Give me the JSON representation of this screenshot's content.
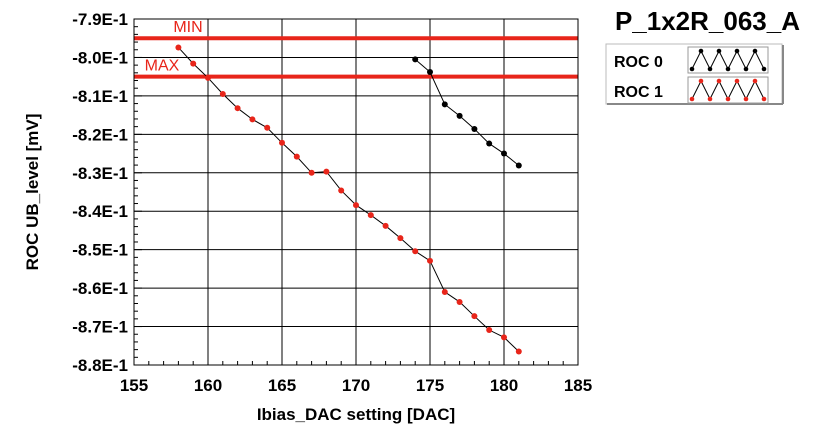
{
  "chart_data": {
    "type": "line",
    "title": "P_1x2R_063_A",
    "xlabel": "Ibias_DAC setting [DAC]",
    "ylabel": "ROC UB_level [mV]",
    "xlim": [
      155,
      185
    ],
    "ylim": [
      -0.88,
      -0.79
    ],
    "x_ticks": [
      "155",
      "160",
      "165",
      "170",
      "175",
      "180",
      "185"
    ],
    "y_ticks": [
      "-7.9E-1",
      "-8.0E-1",
      "-8.1E-1",
      "-8.2E-1",
      "-8.3E-1",
      "-8.4E-1",
      "-8.5E-1",
      "-8.6E-1",
      "-8.7E-1",
      "-8.8E-1"
    ],
    "grid": true,
    "legend_position": "top-right",
    "series": [
      {
        "name": "ROC 0",
        "color": "#000000",
        "x": [
          174,
          175,
          176,
          177,
          178,
          179,
          180,
          181
        ],
        "y": [
          -0.8005,
          -0.8038,
          -0.8122,
          -0.8152,
          -0.8186,
          -0.8224,
          -0.825,
          -0.8281
        ]
      },
      {
        "name": "ROC 1",
        "color": "#e8251a",
        "x": [
          158,
          159,
          160,
          161,
          162,
          163,
          164,
          165,
          166,
          167,
          168,
          169,
          170,
          171,
          172,
          173,
          174,
          175,
          176,
          177,
          178,
          179,
          180,
          181
        ],
        "y": [
          -0.7974,
          -0.8016,
          -0.8053,
          -0.8095,
          -0.8132,
          -0.8161,
          -0.8183,
          -0.8222,
          -0.8258,
          -0.83,
          -0.8297,
          -0.8346,
          -0.8384,
          -0.841,
          -0.8438,
          -0.847,
          -0.8504,
          -0.8529,
          -0.861,
          -0.8636,
          -0.8673,
          -0.8709,
          -0.8728,
          -0.8765
        ]
      }
    ],
    "limits": [
      {
        "label": "MIN",
        "y": -0.795,
        "color": "#e8251a"
      },
      {
        "label": "MAX",
        "y": -0.805,
        "color": "#e8251a"
      }
    ]
  }
}
